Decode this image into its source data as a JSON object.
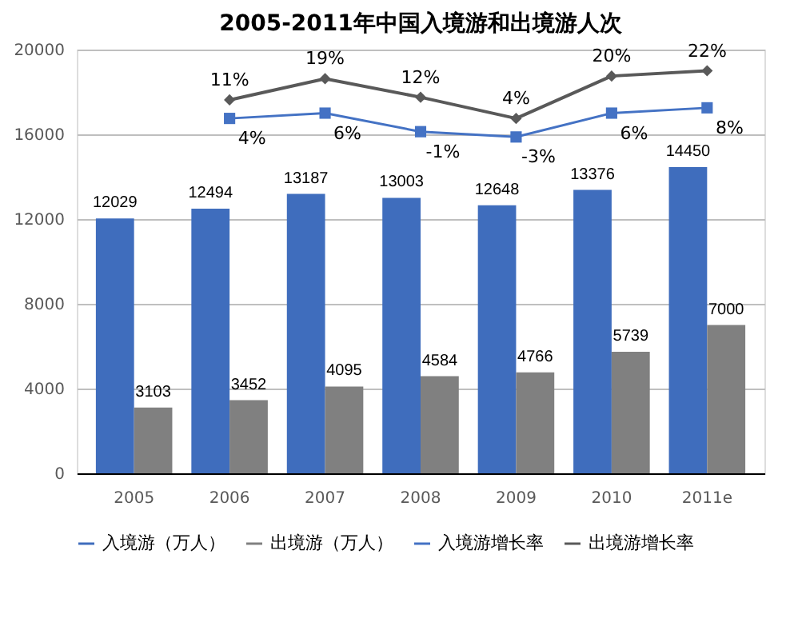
{
  "chart_data": {
    "type": "bar",
    "title": "2005-2011年中国入境游和出境游人次",
    "categories": [
      "2005",
      "2006",
      "2007",
      "2008",
      "2009",
      "2010",
      "2011e"
    ],
    "series": [
      {
        "name": "入境游（万人）",
        "color": "#3f6dbd",
        "values": [
          12029,
          12494,
          13187,
          13003,
          12648,
          13376,
          14450
        ],
        "value_labels": [
          "12029",
          "12494",
          "13187",
          "13003",
          "12648",
          "13376",
          "14450"
        ]
      },
      {
        "name": "出境游（万人）",
        "color": "#808080",
        "values": [
          3103,
          3452,
          4095,
          4584,
          4766,
          5739,
          7000
        ],
        "value_labels": [
          "3103",
          "3452",
          "4095",
          "4584",
          "4766",
          "5739",
          "7000"
        ]
      },
      {
        "name": "入境游增长率",
        "type": "line",
        "axis": "y2",
        "marker": "square",
        "color": "#4472c4",
        "values": [
          null,
          4,
          6,
          -1,
          -3,
          6,
          8
        ],
        "value_labels": [
          null,
          "4%",
          "6%",
          "-1%",
          "-3%",
          "6%",
          "8%"
        ]
      },
      {
        "name": "出境游增长率",
        "type": "line",
        "axis": "y2",
        "marker": "diamond",
        "color": "#595959",
        "values": [
          null,
          11,
          19,
          12,
          4,
          20,
          22
        ],
        "value_labels": [
          null,
          "11%",
          "19%",
          "12%",
          "4%",
          "20%",
          "22%"
        ]
      }
    ],
    "ylim": [
      0,
      20000
    ],
    "yticks": [
      0,
      4000,
      8000,
      12000,
      16000,
      20000
    ],
    "y2lim": [
      -130,
      30
    ],
    "grid": "y",
    "legend": "bottom"
  }
}
